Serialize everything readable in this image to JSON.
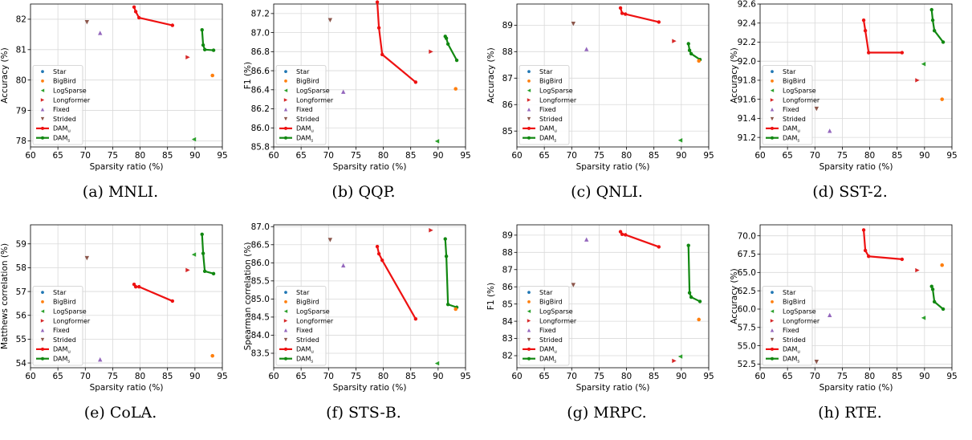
{
  "colors": {
    "Star": "#1f77b4",
    "BigBird": "#ff7f0e",
    "LogSparse": "#2ca02c",
    "Longformer": "#d62728",
    "Fixed": "#9467bd",
    "Strided": "#8c564b",
    "DAM_u": "#ee1111",
    "DAM_s": "#118811"
  },
  "legend": {
    "items": [
      {
        "label": "Star",
        "key": "Star",
        "marker": "circle"
      },
      {
        "label": "BigBird",
        "key": "BigBird",
        "marker": "circle"
      },
      {
        "label": "LogSparse",
        "key": "LogSparse",
        "marker": "triangle-left"
      },
      {
        "label": "Longformer",
        "key": "Longformer",
        "marker": "triangle-right"
      },
      {
        "label": "Fixed",
        "key": "Fixed",
        "marker": "triangle-up"
      },
      {
        "label": "Strided",
        "key": "Strided",
        "marker": "triangle-down"
      },
      {
        "label": "DAM",
        "sub": "u",
        "key": "DAM_u",
        "marker": "line"
      },
      {
        "label": "DAM",
        "sub": "s",
        "key": "DAM_s",
        "marker": "line"
      }
    ]
  },
  "chart_data": [
    {
      "type": "scatter",
      "caption": "(a) MNLI.",
      "xlabel": "Sparsity ratio (%)",
      "ylabel": "Accuracy (%)",
      "xlim": [
        60,
        95
      ],
      "ylim": [
        77.8,
        82.5
      ],
      "xticks": [
        60,
        65,
        70,
        75,
        80,
        85,
        90,
        95
      ],
      "yticks": [
        78,
        79,
        80,
        81,
        82
      ],
      "legend_position": "lower-left",
      "points": [
        {
          "series": "Strided",
          "x": 70.3,
          "y": 81.9
        },
        {
          "series": "Fixed",
          "x": 72.7,
          "y": 81.55
        },
        {
          "series": "Longformer",
          "x": 88.7,
          "y": 80.75
        },
        {
          "series": "BigBird",
          "x": 93.2,
          "y": 80.15
        },
        {
          "series": "LogSparse",
          "x": 89.8,
          "y": 78.05
        }
      ],
      "lines": [
        {
          "series": "DAM_u",
          "x": [
            78.9,
            79.2,
            79.8,
            85.9
          ],
          "y": [
            82.4,
            82.25,
            82.05,
            81.8
          ]
        },
        {
          "series": "DAM_s",
          "x": [
            91.3,
            91.5,
            91.8,
            93.4
          ],
          "y": [
            81.65,
            81.15,
            81.0,
            80.98
          ]
        }
      ]
    },
    {
      "type": "scatter",
      "caption": "(b) QQP.",
      "xlabel": "Sparsity ratio (%)",
      "ylabel": "F1 (%)",
      "xlim": [
        60,
        95
      ],
      "ylim": [
        85.8,
        87.3
      ],
      "xticks": [
        60,
        65,
        70,
        75,
        80,
        85,
        90,
        95
      ],
      "yticks": [
        85.8,
        86.0,
        86.2,
        86.4,
        86.6,
        86.8,
        87.0,
        87.2
      ],
      "legend_position": "lower-left",
      "points": [
        {
          "series": "Strided",
          "x": 70.3,
          "y": 87.13
        },
        {
          "series": "Fixed",
          "x": 72.7,
          "y": 86.38
        },
        {
          "series": "Longformer",
          "x": 88.7,
          "y": 86.8
        },
        {
          "series": "BigBird",
          "x": 93.2,
          "y": 86.41
        },
        {
          "series": "LogSparse",
          "x": 89.8,
          "y": 85.86
        }
      ],
      "lines": [
        {
          "series": "DAM_u",
          "x": [
            78.9,
            79.2,
            79.8,
            85.9
          ],
          "y": [
            87.32,
            87.05,
            86.77,
            86.48
          ]
        },
        {
          "series": "DAM_s",
          "x": [
            91.3,
            91.5,
            91.8,
            93.4
          ],
          "y": [
            86.96,
            86.94,
            86.88,
            86.71
          ]
        }
      ]
    },
    {
      "type": "scatter",
      "caption": "(c) QNLI.",
      "xlabel": "Sparsity ratio (%)",
      "ylabel": "Accuracy (%)",
      "xlim": [
        60,
        95
      ],
      "ylim": [
        84.4,
        89.8
      ],
      "xticks": [
        60,
        65,
        70,
        75,
        80,
        85,
        90,
        95
      ],
      "yticks": [
        85,
        86,
        87,
        88,
        89
      ],
      "legend_position": "lower-left",
      "points": [
        {
          "series": "Strided",
          "x": 70.3,
          "y": 89.05
        },
        {
          "series": "Fixed",
          "x": 72.7,
          "y": 88.1
        },
        {
          "series": "Longformer",
          "x": 88.7,
          "y": 88.4
        },
        {
          "series": "BigBird",
          "x": 93.2,
          "y": 87.65
        },
        {
          "series": "LogSparse",
          "x": 89.8,
          "y": 84.65
        }
      ],
      "lines": [
        {
          "series": "DAM_u",
          "x": [
            78.9,
            79.2,
            79.8,
            85.9
          ],
          "y": [
            89.65,
            89.45,
            89.42,
            89.12
          ]
        },
        {
          "series": "DAM_s",
          "x": [
            91.3,
            91.5,
            91.8,
            93.4
          ],
          "y": [
            88.3,
            88.05,
            87.92,
            87.7
          ]
        }
      ]
    },
    {
      "type": "scatter",
      "caption": "(d) SST-2.",
      "xlabel": "Sparsity ratio (%)",
      "ylabel": "Accuracy (%)",
      "xlim": [
        60,
        95
      ],
      "ylim": [
        91.1,
        92.6
      ],
      "xticks": [
        60,
        65,
        70,
        75,
        80,
        85,
        90,
        95
      ],
      "yticks": [
        91.2,
        91.4,
        91.6,
        91.8,
        92.0,
        92.2,
        92.4,
        92.6
      ],
      "legend_position": "lower-left",
      "points": [
        {
          "series": "Strided",
          "x": 70.3,
          "y": 91.5
        },
        {
          "series": "Fixed",
          "x": 72.7,
          "y": 91.27
        },
        {
          "series": "Longformer",
          "x": 88.7,
          "y": 91.8
        },
        {
          "series": "BigBird",
          "x": 93.2,
          "y": 91.6
        },
        {
          "series": "LogSparse",
          "x": 89.8,
          "y": 91.97
        }
      ],
      "lines": [
        {
          "series": "DAM_u",
          "x": [
            78.9,
            79.2,
            79.8,
            85.9
          ],
          "y": [
            92.43,
            92.32,
            92.09,
            92.09
          ]
        },
        {
          "series": "DAM_s",
          "x": [
            91.3,
            91.5,
            91.8,
            93.4
          ],
          "y": [
            92.54,
            92.43,
            92.32,
            92.2
          ]
        }
      ]
    },
    {
      "type": "scatter",
      "caption": "(e) CoLA.",
      "xlabel": "Sparsity ratio (%)",
      "ylabel": "Matthews correlation (%)",
      "xlim": [
        60,
        95
      ],
      "ylim": [
        53.8,
        59.8
      ],
      "xticks": [
        60,
        65,
        70,
        75,
        80,
        85,
        90,
        95
      ],
      "yticks": [
        54,
        55,
        56,
        57,
        58,
        59
      ],
      "legend_position": "lower-left",
      "points": [
        {
          "series": "Strided",
          "x": 70.3,
          "y": 58.4
        },
        {
          "series": "Fixed",
          "x": 72.7,
          "y": 54.15
        },
        {
          "series": "Longformer",
          "x": 88.7,
          "y": 57.9
        },
        {
          "series": "BigBird",
          "x": 93.2,
          "y": 54.3
        },
        {
          "series": "LogSparse",
          "x": 89.8,
          "y": 58.55
        }
      ],
      "lines": [
        {
          "series": "DAM_u",
          "x": [
            78.9,
            79.2,
            79.8,
            85.9
          ],
          "y": [
            57.3,
            57.2,
            57.2,
            56.6
          ]
        },
        {
          "series": "DAM_s",
          "x": [
            91.3,
            91.5,
            91.8,
            93.4
          ],
          "y": [
            59.4,
            58.6,
            57.85,
            57.75
          ]
        }
      ]
    },
    {
      "type": "scatter",
      "caption": "(f) STS-B.",
      "xlabel": "Sparsity ratio (%)",
      "ylabel": "Spearman correlation (%)",
      "xlim": [
        60,
        95
      ],
      "ylim": [
        83.1,
        87.05
      ],
      "xticks": [
        60,
        65,
        70,
        75,
        80,
        85,
        90,
        95
      ],
      "yticks": [
        83.5,
        84.0,
        84.5,
        85.0,
        85.5,
        86.0,
        86.5,
        87.0
      ],
      "legend_position": "lower-left",
      "points": [
        {
          "series": "Strided",
          "x": 70.3,
          "y": 86.63
        },
        {
          "series": "Fixed",
          "x": 72.7,
          "y": 85.93
        },
        {
          "series": "Longformer",
          "x": 88.7,
          "y": 86.9
        },
        {
          "series": "BigBird",
          "x": 93.2,
          "y": 84.72
        },
        {
          "series": "LogSparse",
          "x": 89.8,
          "y": 83.22
        }
      ],
      "lines": [
        {
          "series": "DAM_u",
          "x": [
            78.9,
            79.2,
            79.8,
            85.9
          ],
          "y": [
            86.45,
            86.25,
            86.07,
            84.45
          ]
        },
        {
          "series": "DAM_s",
          "x": [
            91.3,
            91.5,
            91.8,
            93.4
          ],
          "y": [
            86.66,
            86.18,
            84.85,
            84.77
          ]
        }
      ]
    },
    {
      "type": "scatter",
      "caption": "(g) MRPC.",
      "xlabel": "Sparsity ratio (%)",
      "ylabel": "F1 (%)",
      "xlim": [
        60,
        95
      ],
      "ylim": [
        81.3,
        89.6
      ],
      "xticks": [
        60,
        65,
        70,
        75,
        80,
        85,
        90,
        95
      ],
      "yticks": [
        82,
        83,
        84,
        85,
        86,
        87,
        88,
        89
      ],
      "legend_position": "lower-left",
      "points": [
        {
          "series": "Strided",
          "x": 70.3,
          "y": 86.1
        },
        {
          "series": "Fixed",
          "x": 72.7,
          "y": 88.75
        },
        {
          "series": "Longformer",
          "x": 88.7,
          "y": 81.7
        },
        {
          "series": "BigBird",
          "x": 93.2,
          "y": 84.1
        },
        {
          "series": "LogSparse",
          "x": 89.8,
          "y": 81.95
        }
      ],
      "lines": [
        {
          "series": "DAM_u",
          "x": [
            78.9,
            79.2,
            79.8,
            85.9
          ],
          "y": [
            89.2,
            89.05,
            89.02,
            88.32
          ]
        },
        {
          "series": "DAM_s",
          "x": [
            91.3,
            91.5,
            91.8,
            93.4
          ],
          "y": [
            88.4,
            85.65,
            85.4,
            85.15
          ]
        }
      ]
    },
    {
      "type": "scatter",
      "caption": "(h) RTE.",
      "xlabel": "Sparsity ratio (%)",
      "ylabel": "Accuracy (%)",
      "xlim": [
        60,
        95
      ],
      "ylim": [
        52.0,
        71.5
      ],
      "xticks": [
        60,
        65,
        70,
        75,
        80,
        85,
        90,
        95
      ],
      "yticks": [
        52.5,
        55.0,
        57.5,
        60.0,
        62.5,
        65.0,
        67.5,
        70.0
      ],
      "legend_position": "lower-left",
      "points": [
        {
          "series": "Strided",
          "x": 70.3,
          "y": 52.8
        },
        {
          "series": "Fixed",
          "x": 72.7,
          "y": 59.2
        },
        {
          "series": "Longformer",
          "x": 88.7,
          "y": 65.3
        },
        {
          "series": "BigBird",
          "x": 93.2,
          "y": 66.0
        },
        {
          "series": "LogSparse",
          "x": 89.8,
          "y": 58.8
        }
      ],
      "lines": [
        {
          "series": "DAM_u",
          "x": [
            78.9,
            79.2,
            79.8,
            85.9
          ],
          "y": [
            70.8,
            68.0,
            67.2,
            66.8
          ]
        },
        {
          "series": "DAM_s",
          "x": [
            91.3,
            91.5,
            91.8,
            93.4
          ],
          "y": [
            63.1,
            62.7,
            61.0,
            60.0
          ]
        }
      ]
    }
  ]
}
